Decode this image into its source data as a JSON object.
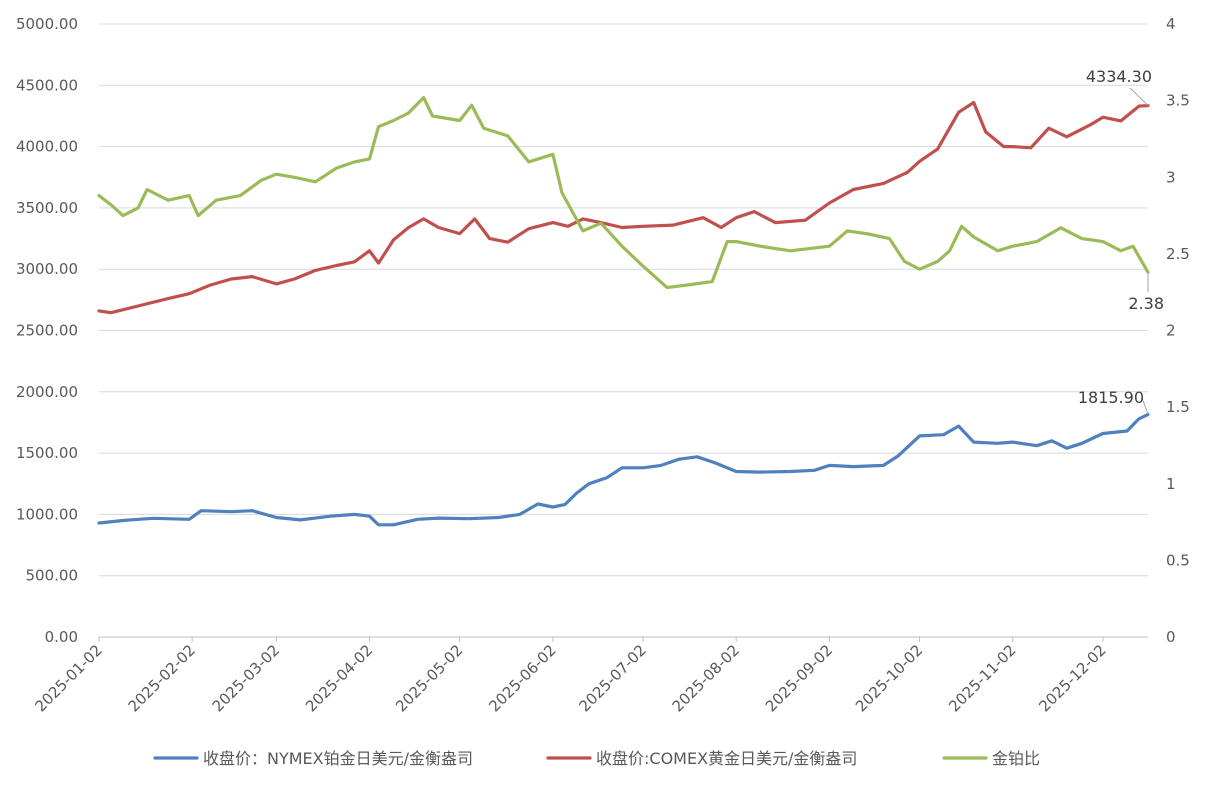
{
  "chart_data": {
    "type": "line",
    "x_start": "2025-01-02",
    "x_end": "2025-12-17",
    "x_tick_labels": [
      "2025-01-02",
      "2025-02-02",
      "2025-03-02",
      "2025-04-02",
      "2025-05-02",
      "2025-06-02",
      "2025-07-02",
      "2025-08-02",
      "2025-09-02",
      "2025-10-02",
      "2025-11-02",
      "2025-12-02"
    ],
    "y_left": {
      "min": 0,
      "max": 5000,
      "step": 500,
      "tick_labels": [
        "0.00",
        "500.00",
        "1000.00",
        "1500.00",
        "2000.00",
        "2500.00",
        "3000.00",
        "3500.00",
        "4000.00",
        "4500.00",
        "5000.00"
      ]
    },
    "y_right": {
      "min": 0,
      "max": 4,
      "step": 0.5,
      "tick_labels": [
        "0",
        "0.5",
        "1",
        "1.5",
        "2",
        "2.5",
        "3",
        "3.5",
        "4"
      ]
    },
    "grid": "horizontal",
    "legend_position": "bottom",
    "series": [
      {
        "name": "收盘价：NYMEX铂金日美元/金衡盎司",
        "axis": "left",
        "color": "#4f81bd",
        "points": [
          [
            "2025-01-02",
            930
          ],
          [
            "2025-01-10",
            950
          ],
          [
            "2025-01-20",
            968
          ],
          [
            "2025-02-01",
            960
          ],
          [
            "2025-02-05",
            1030
          ],
          [
            "2025-02-15",
            1022
          ],
          [
            "2025-02-22",
            1030
          ],
          [
            "2025-03-02",
            975
          ],
          [
            "2025-03-10",
            955
          ],
          [
            "2025-03-20",
            985
          ],
          [
            "2025-03-28",
            1000
          ],
          [
            "2025-04-02",
            985
          ],
          [
            "2025-04-05",
            915
          ],
          [
            "2025-04-10",
            915
          ],
          [
            "2025-04-18",
            960
          ],
          [
            "2025-04-25",
            970
          ],
          [
            "2025-05-05",
            965
          ],
          [
            "2025-05-15",
            975
          ],
          [
            "2025-05-22",
            1000
          ],
          [
            "2025-05-28",
            1085
          ],
          [
            "2025-06-02",
            1060
          ],
          [
            "2025-06-06",
            1080
          ],
          [
            "2025-06-10",
            1175
          ],
          [
            "2025-06-14",
            1250
          ],
          [
            "2025-06-20",
            1300
          ],
          [
            "2025-06-25",
            1380
          ],
          [
            "2025-07-02",
            1380
          ],
          [
            "2025-07-08",
            1400
          ],
          [
            "2025-07-14",
            1450
          ],
          [
            "2025-07-20",
            1470
          ],
          [
            "2025-07-26",
            1420
          ],
          [
            "2025-08-02",
            1350
          ],
          [
            "2025-08-10",
            1345
          ],
          [
            "2025-08-20",
            1350
          ],
          [
            "2025-08-28",
            1360
          ],
          [
            "2025-09-02",
            1400
          ],
          [
            "2025-09-10",
            1390
          ],
          [
            "2025-09-20",
            1400
          ],
          [
            "2025-09-25",
            1480
          ],
          [
            "2025-10-02",
            1640
          ],
          [
            "2025-10-10",
            1650
          ],
          [
            "2025-10-15",
            1720
          ],
          [
            "2025-10-20",
            1590
          ],
          [
            "2025-10-28",
            1580
          ],
          [
            "2025-11-02",
            1590
          ],
          [
            "2025-11-10",
            1560
          ],
          [
            "2025-11-15",
            1600
          ],
          [
            "2025-11-20",
            1540
          ],
          [
            "2025-11-25",
            1580
          ],
          [
            "2025-12-02",
            1660
          ],
          [
            "2025-12-10",
            1680
          ],
          [
            "2025-12-14",
            1780
          ],
          [
            "2025-12-17",
            1815.9
          ]
        ]
      },
      {
        "name": "收盘价:COMEX黄金日美元/金衡盎司",
        "axis": "left",
        "color": "#c0504d",
        "points": [
          [
            "2025-01-02",
            2660
          ],
          [
            "2025-01-06",
            2645
          ],
          [
            "2025-01-15",
            2700
          ],
          [
            "2025-01-25",
            2760
          ],
          [
            "2025-02-01",
            2800
          ],
          [
            "2025-02-08",
            2870
          ],
          [
            "2025-02-15",
            2920
          ],
          [
            "2025-02-22",
            2940
          ],
          [
            "2025-03-02",
            2880
          ],
          [
            "2025-03-08",
            2920
          ],
          [
            "2025-03-15",
            2990
          ],
          [
            "2025-03-22",
            3030
          ],
          [
            "2025-03-28",
            3060
          ],
          [
            "2025-04-02",
            3150
          ],
          [
            "2025-04-05",
            3050
          ],
          [
            "2025-04-10",
            3240
          ],
          [
            "2025-04-15",
            3340
          ],
          [
            "2025-04-20",
            3410
          ],
          [
            "2025-04-25",
            3340
          ],
          [
            "2025-05-02",
            3290
          ],
          [
            "2025-05-07",
            3410
          ],
          [
            "2025-05-12",
            3250
          ],
          [
            "2025-05-18",
            3220
          ],
          [
            "2025-05-25",
            3330
          ],
          [
            "2025-06-02",
            3380
          ],
          [
            "2025-06-07",
            3350
          ],
          [
            "2025-06-12",
            3410
          ],
          [
            "2025-06-18",
            3380
          ],
          [
            "2025-06-25",
            3340
          ],
          [
            "2025-07-02",
            3350
          ],
          [
            "2025-07-12",
            3360
          ],
          [
            "2025-07-22",
            3420
          ],
          [
            "2025-07-28",
            3340
          ],
          [
            "2025-08-02",
            3420
          ],
          [
            "2025-08-08",
            3470
          ],
          [
            "2025-08-15",
            3380
          ],
          [
            "2025-08-25",
            3400
          ],
          [
            "2025-09-02",
            3540
          ],
          [
            "2025-09-10",
            3650
          ],
          [
            "2025-09-20",
            3700
          ],
          [
            "2025-09-28",
            3790
          ],
          [
            "2025-10-02",
            3880
          ],
          [
            "2025-10-08",
            3980
          ],
          [
            "2025-10-15",
            4280
          ],
          [
            "2025-10-20",
            4360
          ],
          [
            "2025-10-24",
            4120
          ],
          [
            "2025-10-30",
            4000
          ],
          [
            "2025-11-02",
            4000
          ],
          [
            "2025-11-08",
            3990
          ],
          [
            "2025-11-14",
            4150
          ],
          [
            "2025-11-20",
            4080
          ],
          [
            "2025-11-28",
            4180
          ],
          [
            "2025-12-02",
            4240
          ],
          [
            "2025-12-08",
            4210
          ],
          [
            "2025-12-14",
            4330
          ],
          [
            "2025-12-17",
            4334.3
          ]
        ]
      },
      {
        "name": "金铂比",
        "axis": "right",
        "color": "#9bbb59",
        "points": [
          [
            "2025-01-02",
            2.88
          ],
          [
            "2025-01-06",
            2.82
          ],
          [
            "2025-01-10",
            2.75
          ],
          [
            "2025-01-15",
            2.8
          ],
          [
            "2025-01-18",
            2.92
          ],
          [
            "2025-01-25",
            2.85
          ],
          [
            "2025-02-01",
            2.88
          ],
          [
            "2025-02-04",
            2.75
          ],
          [
            "2025-02-10",
            2.85
          ],
          [
            "2025-02-18",
            2.88
          ],
          [
            "2025-02-25",
            2.98
          ],
          [
            "2025-03-02",
            3.02
          ],
          [
            "2025-03-08",
            3.0
          ],
          [
            "2025-03-15",
            2.97
          ],
          [
            "2025-03-22",
            3.06
          ],
          [
            "2025-03-28",
            3.1
          ],
          [
            "2025-04-02",
            3.12
          ],
          [
            "2025-04-05",
            3.33
          ],
          [
            "2025-04-10",
            3.37
          ],
          [
            "2025-04-15",
            3.42
          ],
          [
            "2025-04-20",
            3.52
          ],
          [
            "2025-04-23",
            3.4
          ],
          [
            "2025-05-02",
            3.37
          ],
          [
            "2025-05-06",
            3.47
          ],
          [
            "2025-05-10",
            3.32
          ],
          [
            "2025-05-18",
            3.27
          ],
          [
            "2025-05-25",
            3.1
          ],
          [
            "2025-06-02",
            3.15
          ],
          [
            "2025-06-05",
            2.9
          ],
          [
            "2025-06-12",
            2.65
          ],
          [
            "2025-06-18",
            2.7
          ],
          [
            "2025-06-25",
            2.55
          ],
          [
            "2025-07-02",
            2.42
          ],
          [
            "2025-07-10",
            2.28
          ],
          [
            "2025-07-18",
            2.3
          ],
          [
            "2025-07-25",
            2.32
          ],
          [
            "2025-07-30",
            2.58
          ],
          [
            "2025-08-02",
            2.58
          ],
          [
            "2025-08-10",
            2.55
          ],
          [
            "2025-08-20",
            2.52
          ],
          [
            "2025-09-02",
            2.55
          ],
          [
            "2025-09-08",
            2.65
          ],
          [
            "2025-09-15",
            2.63
          ],
          [
            "2025-09-22",
            2.6
          ],
          [
            "2025-09-27",
            2.45
          ],
          [
            "2025-10-02",
            2.4
          ],
          [
            "2025-10-08",
            2.45
          ],
          [
            "2025-10-12",
            2.52
          ],
          [
            "2025-10-16",
            2.68
          ],
          [
            "2025-10-20",
            2.61
          ],
          [
            "2025-10-28",
            2.52
          ],
          [
            "2025-11-02",
            2.55
          ],
          [
            "2025-11-10",
            2.58
          ],
          [
            "2025-11-18",
            2.67
          ],
          [
            "2025-11-25",
            2.6
          ],
          [
            "2025-12-02",
            2.58
          ],
          [
            "2025-12-08",
            2.52
          ],
          [
            "2025-12-12",
            2.55
          ],
          [
            "2025-12-17",
            2.38
          ]
        ]
      }
    ],
    "annotations": [
      "4334.30",
      "1815.90",
      "2.38"
    ]
  }
}
